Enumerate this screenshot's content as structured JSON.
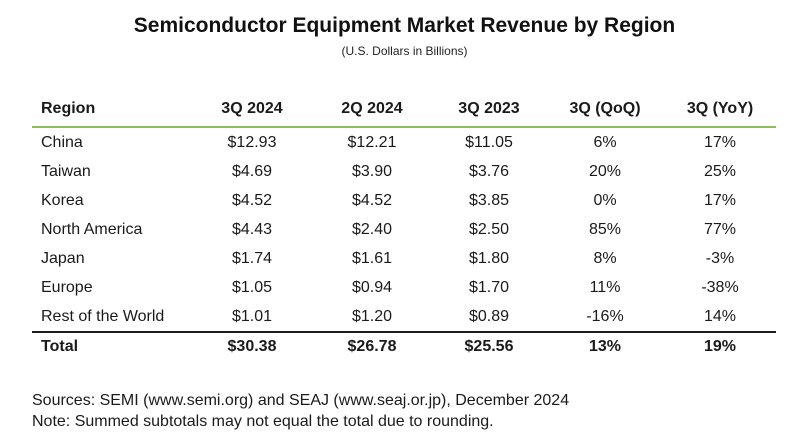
{
  "title": "Semiconductor Equipment Market Revenue by Region",
  "subtitle": "(U.S. Dollars in Billions)",
  "table": {
    "headers": [
      "Region",
      "3Q 2024",
      "2Q 2024",
      "3Q 2023",
      "3Q (QoQ)",
      "3Q (YoY)"
    ],
    "rows": [
      [
        "China",
        "$12.93",
        "$12.21",
        "$11.05",
        "6%",
        "17%"
      ],
      [
        "Taiwan",
        "$4.69",
        "$3.90",
        "$3.76",
        "20%",
        "25%"
      ],
      [
        "Korea",
        "$4.52",
        "$4.52",
        "$3.85",
        "0%",
        "17%"
      ],
      [
        "North America",
        "$4.43",
        "$2.40",
        "$2.50",
        "85%",
        "77%"
      ],
      [
        "Japan",
        "$1.74",
        "$1.61",
        "$1.80",
        "8%",
        "-3%"
      ],
      [
        "Europe",
        "$1.05",
        "$0.94",
        "$1.70",
        "11%",
        "-38%"
      ],
      [
        "Rest of the World",
        "$1.01",
        "$1.20",
        "$0.89",
        "-16%",
        "14%"
      ]
    ],
    "total": [
      "Total",
      "$30.38",
      "$26.78",
      "$25.56",
      "13%",
      "19%"
    ]
  },
  "footer": {
    "sources": "Sources: SEMI (www.semi.org) and SEAJ (www.seaj.or.jp), December 2024",
    "note": "Note: Summed subtotals may not equal the total due to rounding."
  },
  "colors": {
    "header_rule": "#8fbf5a",
    "total_rule": "#1a1a1a"
  }
}
